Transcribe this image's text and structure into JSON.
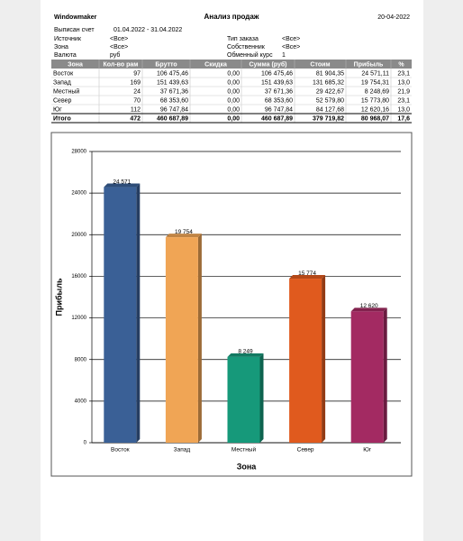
{
  "header": {
    "company": "Windowmaker",
    "title": "Анализ продаж",
    "date": "20-04-2022"
  },
  "info": [
    {
      "label": "Выписан счет",
      "value": "01.04.2022 - 31.04.2022"
    },
    {
      "label": "Источник",
      "value": "<Все>"
    },
    {
      "label": "Зона",
      "value": "<Все>"
    },
    {
      "label": "Валюта",
      "value": "руб"
    }
  ],
  "info_right": [
    {
      "label": "Тип заказа",
      "value": "<Все>"
    },
    {
      "label": "Собственник",
      "value": "<Все>"
    },
    {
      "label": "Обменный курс",
      "value": "1"
    }
  ],
  "table": {
    "columns": [
      "Зона",
      "Кол-во рам",
      "Брутто",
      "Скидка",
      "Сумма (руб)",
      "Стоим",
      "Прибыль",
      "%"
    ],
    "rows": [
      [
        "Восток",
        "97",
        "106 475,46",
        "0,00",
        "106 475,46",
        "81 904,35",
        "24 571,11",
        "23,1"
      ],
      [
        "Запад",
        "169",
        "151 439,63",
        "0,00",
        "151 439,63",
        "131 685,32",
        "19 754,31",
        "13,0"
      ],
      [
        "Местный",
        "24",
        "37 671,36",
        "0,00",
        "37 671,36",
        "29 422,67",
        "8 248,69",
        "21,9"
      ],
      [
        "Север",
        "70",
        "68 353,60",
        "0,00",
        "68 353,60",
        "52 579,80",
        "15 773,80",
        "23,1"
      ],
      [
        "Юг",
        "112",
        "96 747,84",
        "0,00",
        "96 747,84",
        "84 127,68",
        "12 620,16",
        "13,0"
      ]
    ],
    "total": [
      "Итого",
      "472",
      "460 687,89",
      "0,00",
      "460 687,89",
      "379 719,82",
      "80 968,07",
      "17,6"
    ]
  },
  "chart_data": {
    "type": "bar",
    "x_label": "Зона",
    "y_label": "Прибыль",
    "categories": [
      "Восток",
      "Запад",
      "Местный",
      "Север",
      "Юг"
    ],
    "values": [
      24571,
      19754,
      8249,
      15774,
      12620
    ],
    "value_labels": [
      "24 571",
      "19 754",
      "8 249",
      "15 774",
      "12 620"
    ],
    "colors": [
      "#3a6096",
      "#f0a555",
      "#16997a",
      "#e05a1e",
      "#a32a62"
    ],
    "ylim": [
      0,
      28000
    ],
    "yticks": [
      0,
      4000,
      8000,
      12000,
      16000,
      20000,
      24000,
      28000
    ],
    "grid": true
  }
}
